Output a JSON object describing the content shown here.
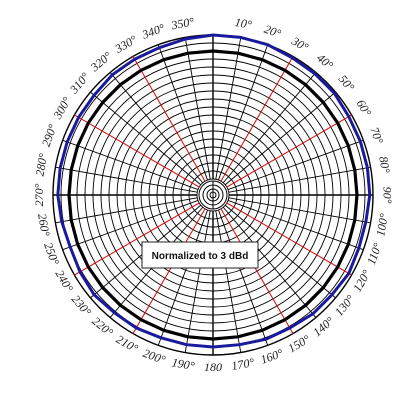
{
  "chart_data": {
    "type": "polar",
    "title": "",
    "annotation": "Normalized to 3 dBd",
    "angle_labels": [
      {
        "angle": 10,
        "label": "10°"
      },
      {
        "angle": 20,
        "label": "20°"
      },
      {
        "angle": 30,
        "label": "30°"
      },
      {
        "angle": 40,
        "label": "40°"
      },
      {
        "angle": 50,
        "label": "50°"
      },
      {
        "angle": 60,
        "label": "60°"
      },
      {
        "angle": 70,
        "label": "70°"
      },
      {
        "angle": 80,
        "label": "80°"
      },
      {
        "angle": 90,
        "label": "90°"
      },
      {
        "angle": 100,
        "label": "100°"
      },
      {
        "angle": 110,
        "label": "110°"
      },
      {
        "angle": 120,
        "label": "120°"
      },
      {
        "angle": 130,
        "label": "130°"
      },
      {
        "angle": 140,
        "label": "140°"
      },
      {
        "angle": 150,
        "label": "150°"
      },
      {
        "angle": 160,
        "label": "160°"
      },
      {
        "angle": 170,
        "label": "170°"
      },
      {
        "angle": 180,
        "label": "180"
      },
      {
        "angle": 190,
        "label": "190°"
      },
      {
        "angle": 200,
        "label": "200°"
      },
      {
        "angle": 210,
        "label": "210°"
      },
      {
        "angle": 220,
        "label": "220°"
      },
      {
        "angle": 230,
        "label": "230°"
      },
      {
        "angle": 240,
        "label": "240°"
      },
      {
        "angle": 250,
        "label": "250°"
      },
      {
        "angle": 260,
        "label": "260°"
      },
      {
        "angle": 270,
        "label": "270°"
      },
      {
        "angle": 280,
        "label": "280°"
      },
      {
        "angle": 290,
        "label": "290°"
      },
      {
        "angle": 300,
        "label": "300°"
      },
      {
        "angle": 310,
        "label": "310°"
      },
      {
        "angle": 320,
        "label": "320°"
      },
      {
        "angle": 330,
        "label": "330°"
      },
      {
        "angle": 340,
        "label": "340°"
      },
      {
        "angle": 350,
        "label": "350°"
      }
    ],
    "angle_range": [
      0,
      360
    ],
    "radial_rings": 20,
    "highlight_angles": [
      30,
      60,
      120,
      150,
      210,
      240,
      300,
      330
    ],
    "series": [
      {
        "color": "#1a1a9c",
        "values": [
          1.0,
          1.0,
          1.0,
          0.99,
          0.99,
          0.99,
          0.98,
          0.98,
          0.98,
          0.98,
          0.97,
          0.97,
          0.98,
          0.97,
          0.97,
          0.96,
          0.96,
          0.95,
          0.95,
          0.95,
          0.95,
          0.96,
          0.96,
          0.97,
          0.96,
          0.95,
          0.96,
          0.97,
          0.97,
          0.97,
          0.97,
          0.97,
          0.98,
          0.98,
          0.98,
          0.99
        ]
      },
      {
        "color": "#000000",
        "values": [
          0.9,
          0.9,
          0.9,
          0.9,
          0.9,
          0.9,
          0.9,
          0.9,
          0.9,
          0.9,
          0.9,
          0.9,
          0.9,
          0.9,
          0.9,
          0.9,
          0.9,
          0.9,
          0.9,
          0.9,
          0.9,
          0.9,
          0.9,
          0.9,
          0.9,
          0.9,
          0.9,
          0.9,
          0.9,
          0.9,
          0.9,
          0.9,
          0.9,
          0.9,
          0.9,
          0.9
        ]
      }
    ],
    "grid": true,
    "colors": {
      "grid": "#000000",
      "highlight_spokes": "#e01818",
      "outer_ring": "#1a1a9c"
    }
  }
}
